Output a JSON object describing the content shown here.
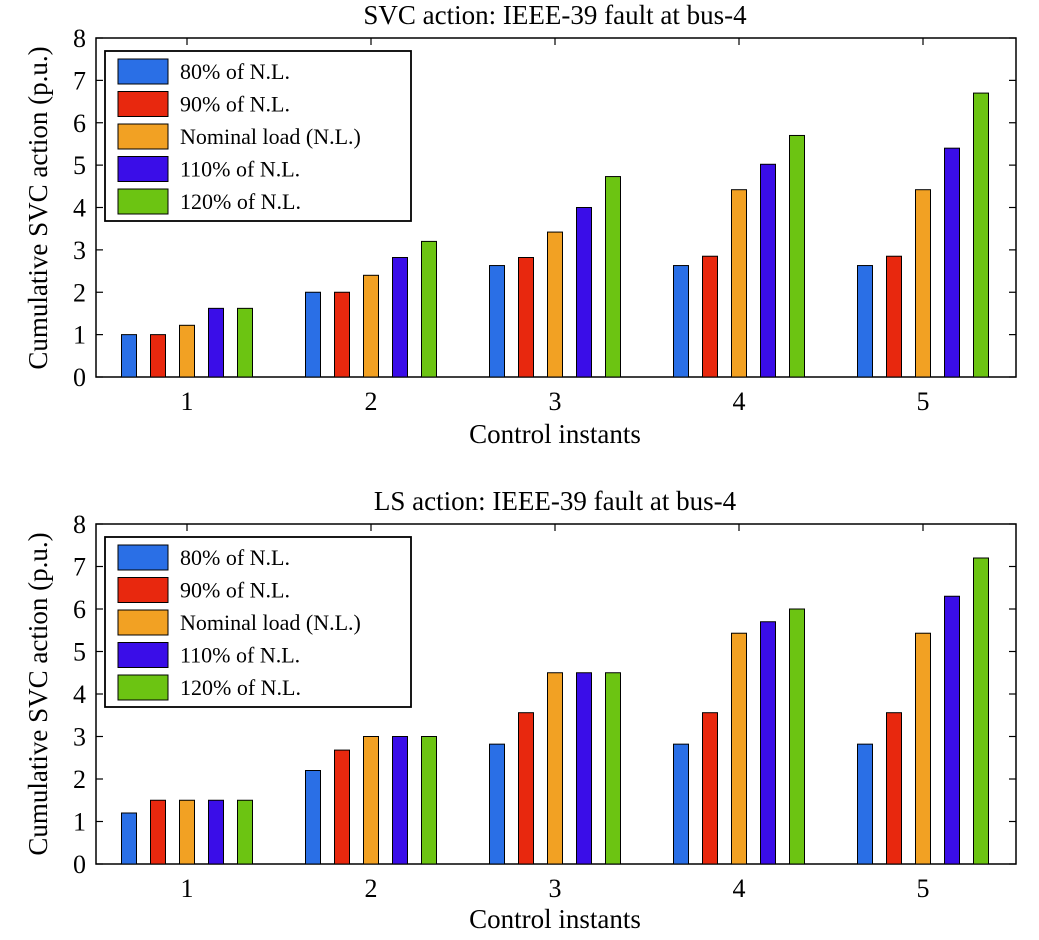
{
  "chart_data": [
    {
      "type": "bar",
      "title": "SVC action: IEEE-39 fault at bus-4",
      "xlabel": "Control instants",
      "ylabel": "Cumulative SVC action (p.u.)",
      "ylim": [
        0,
        8
      ],
      "yticks": [
        "0",
        "1",
        "2",
        "3",
        "4",
        "5",
        "6",
        "7",
        "8"
      ],
      "categories": [
        "1",
        "2",
        "3",
        "4",
        "5"
      ],
      "legend_position": "top-left",
      "grid": false,
      "series": [
        {
          "name": "80% of N.L.",
          "color": "#2a6fe6",
          "values": [
            1.0,
            2.0,
            2.63,
            2.63,
            2.63
          ]
        },
        {
          "name": "90% of N.L.",
          "color": "#e8280e",
          "values": [
            1.0,
            2.0,
            2.82,
            2.85,
            2.85
          ]
        },
        {
          "name": "Nominal load (N.L.)",
          "color": "#f2a123",
          "values": [
            1.22,
            2.4,
            3.42,
            4.42,
            4.42
          ]
        },
        {
          "name": "110% of N.L.",
          "color": "#3a0de8",
          "values": [
            1.62,
            2.82,
            4.0,
            5.02,
            5.4
          ]
        },
        {
          "name": "120% of N.L.",
          "color": "#6cc412",
          "values": [
            1.62,
            3.2,
            4.73,
            5.7,
            6.7
          ]
        }
      ]
    },
    {
      "type": "bar",
      "title": "LS action: IEEE-39 fault at bus-4",
      "xlabel": "Control instants",
      "ylabel": "Cumulative SVC action (p.u.)",
      "ylim": [
        0,
        8
      ],
      "yticks": [
        "0",
        "1",
        "2",
        "3",
        "4",
        "5",
        "6",
        "7",
        "8"
      ],
      "categories": [
        "1",
        "2",
        "3",
        "4",
        "5"
      ],
      "legend_position": "top-left",
      "grid": false,
      "series": [
        {
          "name": "80% of N.L.",
          "color": "#2a6fe6",
          "values": [
            1.2,
            2.2,
            2.82,
            2.82,
            2.82
          ]
        },
        {
          "name": "90% of N.L.",
          "color": "#e8280e",
          "values": [
            1.5,
            2.68,
            3.56,
            3.56,
            3.56
          ]
        },
        {
          "name": "Nominal load (N.L.)",
          "color": "#f2a123",
          "values": [
            1.5,
            3.0,
            4.5,
            5.43,
            5.43
          ]
        },
        {
          "name": "110% of N.L.",
          "color": "#3a0de8",
          "values": [
            1.5,
            3.0,
            4.5,
            5.7,
            6.3
          ]
        },
        {
          "name": "120% of N.L.",
          "color": "#6cc412",
          "values": [
            1.5,
            3.0,
            4.5,
            6.0,
            7.2
          ]
        }
      ]
    }
  ]
}
